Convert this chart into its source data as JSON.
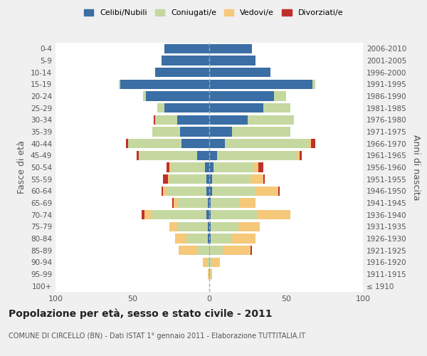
{
  "age_groups": [
    "100+",
    "95-99",
    "90-94",
    "85-89",
    "80-84",
    "75-79",
    "70-74",
    "65-69",
    "60-64",
    "55-59",
    "50-54",
    "45-49",
    "40-44",
    "35-39",
    "30-34",
    "25-29",
    "20-24",
    "15-19",
    "10-14",
    "5-9",
    "0-4"
  ],
  "birth_years": [
    "≤ 1910",
    "1911-1915",
    "1916-1920",
    "1921-1925",
    "1926-1930",
    "1931-1935",
    "1936-1940",
    "1941-1945",
    "1946-1950",
    "1951-1955",
    "1956-1960",
    "1961-1965",
    "1966-1970",
    "1971-1975",
    "1976-1980",
    "1981-1985",
    "1986-1990",
    "1991-1995",
    "1996-2000",
    "2001-2005",
    "2006-2010"
  ],
  "colors": {
    "celibe": "#3A6EA5",
    "coniugato": "#C5D8A0",
    "vedovo": "#F5C87A",
    "divorziato": "#C0302A"
  },
  "males": {
    "celibe": [
      0,
      0,
      0,
      0,
      1,
      1,
      2,
      1,
      2,
      2,
      3,
      8,
      18,
      19,
      21,
      29,
      41,
      58,
      35,
      31,
      29
    ],
    "coniugato": [
      0,
      0,
      1,
      8,
      14,
      20,
      36,
      20,
      26,
      24,
      22,
      38,
      35,
      18,
      14,
      5,
      2,
      1,
      0,
      0,
      0
    ],
    "vedovo": [
      0,
      1,
      3,
      12,
      7,
      5,
      4,
      2,
      2,
      1,
      1,
      0,
      0,
      0,
      0,
      0,
      0,
      0,
      0,
      0,
      0
    ],
    "divorziato": [
      0,
      0,
      0,
      0,
      0,
      0,
      2,
      1,
      1,
      3,
      2,
      1,
      1,
      0,
      1,
      0,
      0,
      0,
      0,
      0,
      0
    ]
  },
  "females": {
    "celibe": [
      0,
      0,
      0,
      0,
      1,
      1,
      1,
      1,
      2,
      2,
      3,
      5,
      10,
      15,
      25,
      35,
      42,
      67,
      40,
      30,
      28
    ],
    "coniugato": [
      0,
      1,
      2,
      9,
      14,
      18,
      30,
      19,
      28,
      25,
      26,
      52,
      55,
      38,
      30,
      18,
      8,
      2,
      0,
      0,
      0
    ],
    "vedovo": [
      0,
      1,
      5,
      18,
      15,
      14,
      22,
      10,
      15,
      8,
      3,
      2,
      1,
      0,
      0,
      0,
      0,
      0,
      0,
      0,
      0
    ],
    "divorziato": [
      0,
      0,
      0,
      1,
      0,
      0,
      0,
      0,
      1,
      1,
      3,
      1,
      3,
      0,
      0,
      0,
      0,
      0,
      0,
      0,
      0
    ]
  },
  "xlim": 100,
  "title": "Popolazione per età, sesso e stato civile - 2011",
  "subtitle": "COMUNE DI CIRCELLO (BN) - Dati ISTAT 1° gennaio 2011 - Elaborazione TUTTITALIA.IT",
  "ylabel_left": "Fasce di età",
  "ylabel_right": "Anni di nascita",
  "background_color": "#f0f0f0",
  "plot_bg": "#ffffff"
}
